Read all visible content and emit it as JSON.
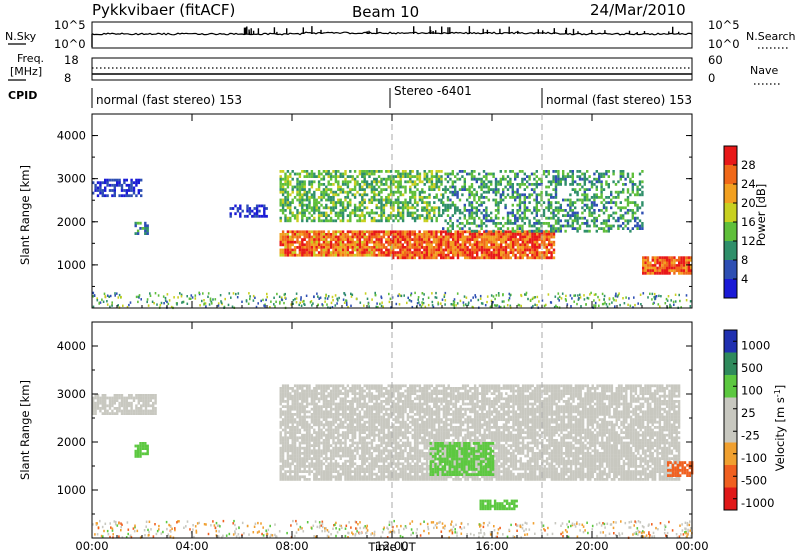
{
  "header": {
    "station": "Pykkvibaer (fitACF)",
    "beam": "Beam 10",
    "date": "24/Mar/2010"
  },
  "top_panels": {
    "nsky_label": "N.Sky",
    "nsearch_label": "N.Search",
    "left_ticks_power": [
      "10^5",
      "10^0"
    ],
    "right_ticks_power": [
      "10^5",
      "10^0"
    ],
    "freq_label": [
      "Freq.",
      "[MHz]"
    ],
    "freq_ticks": [
      "18",
      "8"
    ],
    "nave_label": "Nave",
    "nave_ticks": [
      "60",
      "0"
    ],
    "cpid_label": "CPID",
    "cpid_segments": [
      "normal (fast stereo) 153",
      "Stereo -6401",
      "normal (fast stereo) 153"
    ]
  },
  "colorbars": {
    "power": {
      "label": "Power [dB]",
      "ticks": [
        "28",
        "24",
        "20",
        "16",
        "12",
        "8",
        "4"
      ],
      "colors": [
        "#1a1ad6",
        "#2e4fb3",
        "#2f8f6a",
        "#5fbf3a",
        "#c8d020",
        "#f2a020",
        "#f06818",
        "#e81818"
      ]
    },
    "velocity": {
      "label": "Velocity [m s",
      "label_sup": "-1",
      "label_close": "]",
      "ticks": [
        "1000",
        "500",
        "100",
        "25",
        "-25",
        "-100",
        "-500",
        "-1000"
      ],
      "colors": [
        "#2030b0",
        "#2f8a5c",
        "#5cc840",
        "#c8c8c0",
        "#c8c8c0",
        "#f0a030",
        "#f06020",
        "#e01818"
      ]
    }
  },
  "axes": {
    "ylabel": "Slant Range [km]",
    "y_ticks": [
      "4000",
      "3000",
      "2000",
      "1000"
    ],
    "x_ticks": [
      "00:00",
      "04:00",
      "08:00",
      "12:00",
      "16:00",
      "20:00",
      "00:00"
    ],
    "xlabel": "Time UT"
  },
  "chart_data": [
    {
      "type": "heatmap",
      "panel": "power",
      "xlabel": "Time UT",
      "ylabel": "Slant Range [km]",
      "x_range_hours": [
        0,
        24
      ],
      "ylim": [
        0,
        4500
      ],
      "colorbar_label": "Power [dB]",
      "colorbar_ticks": [
        4,
        8,
        12,
        16,
        20,
        24,
        28
      ],
      "approx_features": [
        {
          "t": [
            0.0,
            2.0
          ],
          "range_km": [
            2600,
            3000
          ],
          "power_db": 6
        },
        {
          "t": [
            1.7,
            2.2
          ],
          "range_km": [
            1700,
            2000
          ],
          "power_db": 12
        },
        {
          "t": [
            5.5,
            7.0
          ],
          "range_km": [
            2100,
            2400
          ],
          "power_db": 6
        },
        {
          "t": [
            7.5,
            14.0
          ],
          "range_km": [
            2000,
            3200
          ],
          "power_db": 16
        },
        {
          "t": [
            7.5,
            12.0
          ],
          "range_km": [
            1200,
            1800
          ],
          "power_db": 27
        },
        {
          "t": [
            12.0,
            18.5
          ],
          "range_km": [
            1150,
            1800
          ],
          "power_db": 28
        },
        {
          "t": [
            14.0,
            22.0
          ],
          "range_km": [
            1800,
            3200
          ],
          "power_db": 14
        },
        {
          "t": [
            22.0,
            24.0
          ],
          "range_km": [
            800,
            1200
          ],
          "power_db": 28
        }
      ]
    },
    {
      "type": "heatmap",
      "panel": "velocity",
      "xlabel": "Time UT",
      "ylabel": "Slant Range [km]",
      "x_range_hours": [
        0,
        24
      ],
      "ylim": [
        0,
        4500
      ],
      "colorbar_label": "Velocity [m s-1]",
      "colorbar_ticks": [
        1000,
        500,
        100,
        25,
        -25,
        -100,
        -500,
        -1000
      ],
      "approx_features": [
        {
          "t": [
            0.0,
            2.5
          ],
          "range_km": [
            2600,
            3000
          ],
          "velocity": 0
        },
        {
          "t": [
            1.7,
            2.2
          ],
          "range_km": [
            1700,
            2000
          ],
          "velocity": 200
        },
        {
          "t": [
            7.5,
            23.5
          ],
          "range_km": [
            1200,
            3200
          ],
          "velocity": 0
        },
        {
          "t": [
            13.5,
            16.0
          ],
          "range_km": [
            1300,
            2000
          ],
          "velocity": 300
        },
        {
          "t": [
            15.5,
            17.0
          ],
          "range_km": [
            600,
            800
          ],
          "velocity": 200
        },
        {
          "t": [
            23.0,
            24.0
          ],
          "range_km": [
            1300,
            1600
          ],
          "velocity": -300
        }
      ]
    }
  ]
}
